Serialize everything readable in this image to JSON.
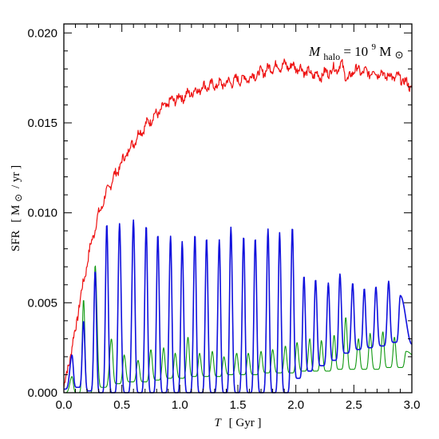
{
  "chart_data": {
    "type": "line",
    "title": "",
    "xlabel": {
      "var": "T",
      "unit": "[ Gyr ]"
    },
    "ylabel": {
      "var": "SFR",
      "unit_open": "[ M",
      "sun": "⊙",
      "unit_close": "/ yr ]"
    },
    "annotation": {
      "var": "M",
      "sub": "halo",
      "eq": " = 10",
      "sup": "9",
      "unit": " M",
      "sun": "⊙"
    },
    "xlim": [
      0.0,
      3.0
    ],
    "ylim": [
      0.0,
      0.0205
    ],
    "x_ticks": [
      "0.0",
      "0.5",
      "1.0",
      "1.5",
      "2.0",
      "2.5",
      "3.0"
    ],
    "y_ticks": [
      "0.000",
      "0.005",
      "0.010",
      "0.015",
      "0.020"
    ],
    "grid": false,
    "legend": "none",
    "series": [
      {
        "color": "#ee1111",
        "x": [
          0.0,
          0.03,
          0.06,
          0.1,
          0.13,
          0.16,
          0.2,
          0.25,
          0.3,
          0.35,
          0.4,
          0.45,
          0.5,
          0.55,
          0.6,
          0.65,
          0.7,
          0.75,
          0.8,
          0.85,
          0.9,
          0.95,
          1.0,
          1.05,
          1.1,
          1.15,
          1.2,
          1.3,
          1.4,
          1.5,
          1.6,
          1.7,
          1.8,
          1.9,
          2.0,
          2.1,
          2.2,
          2.3,
          2.4,
          2.45,
          2.5,
          2.6,
          2.7,
          2.8,
          2.9,
          2.95,
          3.0
        ],
        "y": [
          0.0003,
          0.0012,
          0.0022,
          0.0035,
          0.0048,
          0.0058,
          0.0072,
          0.0087,
          0.0099,
          0.0108,
          0.0116,
          0.0122,
          0.0128,
          0.0134,
          0.0139,
          0.0144,
          0.0148,
          0.0152,
          0.0155,
          0.0158,
          0.0161,
          0.0163,
          0.0164,
          0.0165,
          0.0167,
          0.0168,
          0.017,
          0.0171,
          0.0172,
          0.0174,
          0.0175,
          0.0178,
          0.0181,
          0.0182,
          0.0181,
          0.0178,
          0.0176,
          0.0179,
          0.0182,
          0.0173,
          0.018,
          0.0178,
          0.0178,
          0.0176,
          0.0175,
          0.0172,
          0.017
        ]
      },
      {
        "color": "#1010dd",
        "peak_t": [
          0.07,
          0.17,
          0.27,
          0.37,
          0.48,
          0.6,
          0.71,
          0.81,
          0.92,
          1.02,
          1.13,
          1.23,
          1.34,
          1.44,
          1.55,
          1.65,
          1.76,
          1.86,
          1.97,
          2.07,
          2.17,
          2.28,
          2.38,
          2.49,
          2.59,
          2.69,
          2.8,
          2.9
        ],
        "peak_y": [
          0.0021,
          0.004,
          0.0068,
          0.0094,
          0.0094,
          0.0096,
          0.0093,
          0.0088,
          0.0087,
          0.0084,
          0.0088,
          0.0086,
          0.0085,
          0.0092,
          0.0087,
          0.0086,
          0.0091,
          0.0089,
          0.0092,
          0.0065,
          0.0063,
          0.0061,
          0.0066,
          0.0061,
          0.0058,
          0.0059,
          0.0062,
          0.0054
        ],
        "trough_y": [
          0.0002,
          0.0003,
          0.0001,
          0.0,
          0.0,
          0.0,
          0.0,
          0.0,
          0.0,
          0.0,
          0.0,
          0.0,
          0.0,
          0.0,
          0.0,
          0.0,
          0.0,
          0.0,
          0.0,
          0.0008,
          0.0012,
          0.0015,
          0.0018,
          0.0022,
          0.0024,
          0.0025,
          0.0026,
          0.0028
        ],
        "end_y": 0.0027
      },
      {
        "color": "#119911",
        "peak_t": [
          0.07,
          0.17,
          0.27,
          0.41,
          0.52,
          0.64,
          0.75,
          0.86,
          0.96,
          1.07,
          1.17,
          1.28,
          1.38,
          1.49,
          1.59,
          1.7,
          1.8,
          1.91,
          2.01,
          2.12,
          2.22,
          2.33,
          2.43,
          2.54,
          2.64,
          2.75,
          2.85,
          2.95
        ],
        "peak_y": [
          0.0009,
          0.0052,
          0.0071,
          0.003,
          0.0021,
          0.0018,
          0.0024,
          0.0025,
          0.0022,
          0.0031,
          0.0022,
          0.0023,
          0.002,
          0.0022,
          0.0022,
          0.0023,
          0.0024,
          0.0026,
          0.0028,
          0.003,
          0.0029,
          0.0032,
          0.0042,
          0.003,
          0.0033,
          0.0034,
          0.0031,
          0.0023
        ],
        "trough_y": [
          0.0,
          0.0,
          0.0,
          0.0003,
          0.0005,
          0.0006,
          0.0006,
          0.0007,
          0.0008,
          0.0008,
          0.0009,
          0.0009,
          0.0009,
          0.001,
          0.001,
          0.001,
          0.0011,
          0.0011,
          0.0011,
          0.0012,
          0.0012,
          0.0012,
          0.0013,
          0.0013,
          0.0013,
          0.0013,
          0.0014,
          0.0014
        ],
        "end_y": 0.0019
      }
    ]
  }
}
